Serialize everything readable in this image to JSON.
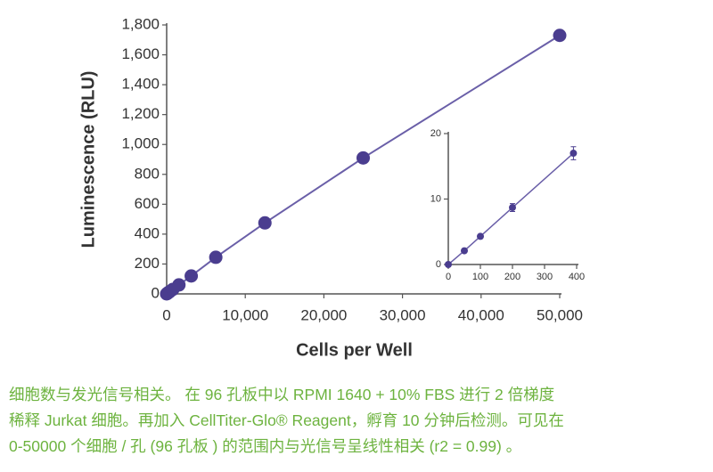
{
  "chart_data": [
    {
      "type": "scatter",
      "xlabel": "Cells per Well",
      "ylabel": "Luminescence (RLU)",
      "x": [
        0,
        98,
        195,
        390,
        780,
        1560,
        3125,
        6250,
        12500,
        25000,
        50000
      ],
      "series": [
        {
          "color": "#4a3d8f",
          "values": [
            0,
            4,
            8,
            15,
            30,
            60,
            120,
            245,
            475,
            910,
            1730
          ]
        }
      ],
      "xlim": [
        0,
        50000
      ],
      "ylim": [
        0,
        1800
      ],
      "xticks": [
        0,
        {
          "value": 10000,
          "label": "10,000"
        },
        {
          "value": 20000,
          "label": "20,000"
        },
        {
          "value": 30000,
          "label": "30,000"
        },
        {
          "value": 40000,
          "label": "40,000"
        },
        {
          "value": 50000,
          "label": "50,000"
        }
      ],
      "yticks": [
        0,
        200,
        400,
        600,
        800,
        {
          "value": 1000,
          "label": "1,000"
        },
        {
          "value": 1200,
          "label": "1,200"
        },
        {
          "value": 1400,
          "label": "1,400"
        },
        {
          "value": 1600,
          "label": "1,600"
        },
        {
          "value": 1800,
          "label": "1,800"
        }
      ]
    },
    {
      "type": "scatter",
      "x": [
        0,
        50,
        100,
        200,
        390
      ],
      "series": [
        {
          "color": "#4a3d8f",
          "values": [
            0,
            2.1,
            4.3,
            8.7,
            17
          ],
          "errors": [
            0.2,
            0.3,
            0.3,
            0.6,
            1
          ]
        }
      ],
      "xlim": [
        0,
        400
      ],
      "ylim": [
        0,
        20
      ],
      "xticks": [
        0,
        100,
        200,
        300,
        400
      ],
      "yticks": [
        0,
        10,
        20
      ]
    }
  ],
  "caption": {
    "lines": [
      "细胞数与发光信号相关。 在 96 孔板中以 RPMI 1640 + 10% FBS 进行 2 倍梯度",
      "稀释 Jurkat 细胞。再加入 CellTiter-Glo® Reagent，孵育 10 分钟后检测。可见在",
      "0-50000 个细胞 / 孔 (96 孔板 ) 的范围内与光信号呈线性相关 (r2 = 0.99) 。"
    ]
  }
}
